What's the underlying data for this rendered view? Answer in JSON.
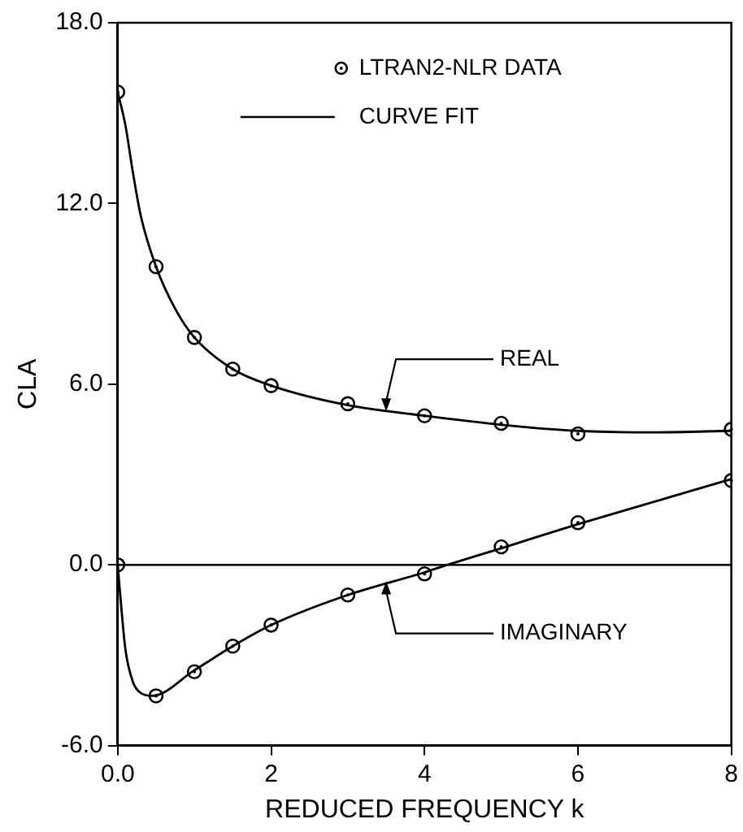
{
  "chart_data": {
    "type": "scatter",
    "xlabel": "REDUCED FREQUENCY k",
    "ylabel": "CLA",
    "xlim": [
      0,
      8
    ],
    "ylim": [
      -6,
      18
    ],
    "xticks": [
      {
        "value": 0,
        "label": "0.0"
      },
      2,
      4,
      6,
      8
    ],
    "yticks": [
      {
        "value": -6,
        "label": "-6.0"
      },
      {
        "value": 0,
        "label": "0.0"
      },
      {
        "value": 6,
        "label": "6.0"
      },
      {
        "value": 12,
        "label": "12.0"
      },
      {
        "value": 18,
        "label": "18.0"
      }
    ],
    "grid": false,
    "legend": "top",
    "marker": "circle",
    "line_style": "solid",
    "series": [
      {
        "name": "LTRAN2-NLR DATA",
        "color": "#000000",
        "x": [
          0,
          0.5,
          1,
          1.5,
          2,
          3,
          4,
          5,
          6,
          8,
          0,
          0.5,
          1,
          1.5,
          2,
          3,
          4,
          5,
          6,
          8
        ],
        "values": [
          15.7,
          9.9,
          7.55,
          6.5,
          5.95,
          5.35,
          4.95,
          4.7,
          4.35,
          4.5,
          0,
          -4.35,
          -3.55,
          -2.7,
          -2.0,
          -1.0,
          -0.3,
          0.6,
          1.4,
          2.8
        ]
      },
      {
        "name": "CURVE FIT",
        "type": "line",
        "color": "#000000",
        "marker": "none",
        "x": [
          0,
          0.1,
          0.2,
          0.3,
          0.5,
          0.75,
          1,
          1.5,
          2,
          3,
          4,
          5,
          6,
          7,
          8
        ],
        "values": [
          15.7,
          14.6,
          13.0,
          11.6,
          9.9,
          8.5,
          7.55,
          6.5,
          5.95,
          5.3,
          4.95,
          4.65,
          4.45,
          4.4,
          4.45
        ]
      },
      {
        "type": "line",
        "color": "#000000",
        "marker": "none",
        "x": [
          0,
          0.05,
          0.1,
          0.2,
          0.3,
          0.45,
          1,
          1.5,
          2,
          3,
          4,
          4.3,
          5,
          6,
          7,
          8
        ],
        "values": [
          0,
          -1.5,
          -2.8,
          -3.9,
          -4.25,
          -4.35,
          -3.5,
          -2.7,
          -2.0,
          -1.0,
          -0.25,
          0,
          0.55,
          1.35,
          2.1,
          2.85
        ]
      }
    ],
    "ref_lines": [
      {
        "axis": "y",
        "value": 0,
        "color": "#000000"
      }
    ],
    "annotations": [
      {
        "text": "REAL",
        "x": 3.5,
        "y": 5.1
      },
      {
        "text": "IMAGINARY",
        "x": 3.5,
        "y": -0.55
      }
    ]
  }
}
